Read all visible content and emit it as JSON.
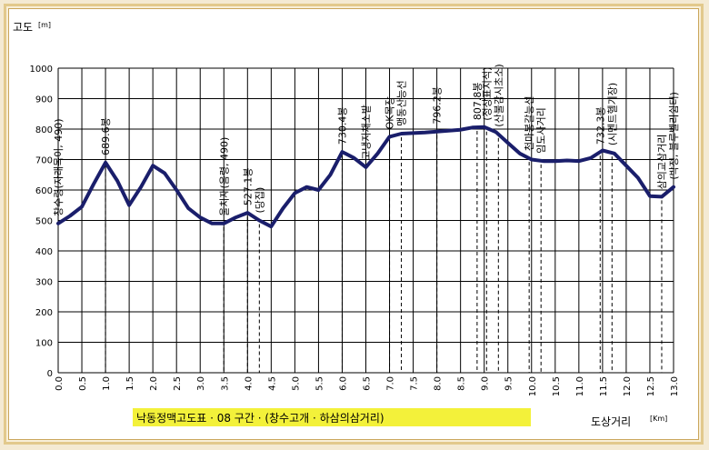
{
  "chart_data": {
    "type": "line",
    "title": "낙동정맥고도표 · 08 구간 · (창수고개 · 하삼의삼거리)",
    "ylabel": "고도",
    "yunit": "[m]",
    "xlabel": "도상거리",
    "xunit": "[Km]",
    "xlim": [
      0,
      13
    ],
    "ylim": [
      0,
      1000
    ],
    "grid": true,
    "yticks": [
      "0",
      "100",
      "200",
      "300",
      "400",
      "500",
      "600",
      "700",
      "800",
      "900",
      "1000"
    ],
    "xticks": [
      "0.0",
      "0.5",
      "1.0",
      "1.5",
      "2.0",
      "2.5",
      "3.0",
      "3.5",
      "4.0",
      "4.5",
      "5.0",
      "5.5",
      "6.0",
      "6.5",
      "7.0",
      "7.5",
      "8.0",
      "8.5",
      "9.0",
      "9.5",
      "10.0",
      "10.5",
      "11.0",
      "11.5",
      "12.0",
      "12.5",
      "13.0"
    ],
    "series": [
      {
        "x": [
          0.0,
          0.25,
          0.5,
          0.75,
          1.0,
          1.25,
          1.5,
          1.75,
          2.0,
          2.25,
          2.5,
          2.75,
          3.0,
          3.25,
          3.5,
          3.75,
          4.0,
          4.25,
          4.5,
          4.75,
          5.0,
          5.25,
          5.5,
          5.75,
          6.0,
          6.25,
          6.5,
          6.75,
          7.0,
          7.25,
          7.5,
          7.75,
          8.0,
          8.25,
          8.5,
          8.75,
          9.0,
          9.25,
          9.5,
          9.75,
          10.0,
          10.25,
          10.5,
          10.75,
          11.0,
          11.25,
          11.5,
          11.75,
          12.0,
          12.25,
          12.5,
          12.75,
          13.0
        ],
        "y": [
          490,
          515,
          545,
          620,
          690,
          630,
          550,
          610,
          680,
          655,
          600,
          540,
          510,
          490,
          490,
          510,
          525,
          500,
          480,
          540,
          590,
          610,
          600,
          650,
          725,
          705,
          675,
          720,
          775,
          785,
          787,
          789,
          792,
          795,
          798,
          805,
          807,
          790,
          755,
          720,
          700,
          695,
          695,
          697,
          695,
          705,
          730,
          720,
          680,
          640,
          580,
          578,
          610
        ]
      }
    ],
    "annotations": [
      {
        "x": 0.0,
        "text": "창수령(자래목이, 490)"
      },
      {
        "x": 1.0,
        "text": "689.6봉"
      },
      {
        "x": 3.5,
        "text": "울치재(음령, 490)"
      },
      {
        "x": 4.0,
        "text": "527.1봉"
      },
      {
        "x": 4.25,
        "text": "(당집)"
      },
      {
        "x": 6.0,
        "text": "730.4봉"
      },
      {
        "x": 6.5,
        "text": "고냉지채소밭"
      },
      {
        "x": 7.0,
        "text": "OK목장"
      },
      {
        "x": 7.25,
        "text": "맹동산능선"
      },
      {
        "x": 8.0,
        "text": "796.2봉"
      },
      {
        "x": 8.85,
        "text": "807.8봉"
      },
      {
        "x": 9.05,
        "text": "(정상표지석)"
      },
      {
        "x": 9.3,
        "text": "(산불감시초소)"
      },
      {
        "x": 9.95,
        "text": "천마봉갈능선"
      },
      {
        "x": 10.2,
        "text": "임도사거리"
      },
      {
        "x": 11.45,
        "text": "732.3봉"
      },
      {
        "x": 11.7,
        "text": "(시멘트헬기장)"
      },
      {
        "x": 12.75,
        "text": "삼의교삼거리"
      },
      {
        "x": 13.0,
        "text": "(박정, 블루벨리쉼터)"
      }
    ]
  },
  "colors": {
    "line": "#1a1e6b",
    "grid": "#000000",
    "banner": "#f3f13a",
    "frame": "#e2c98c"
  }
}
